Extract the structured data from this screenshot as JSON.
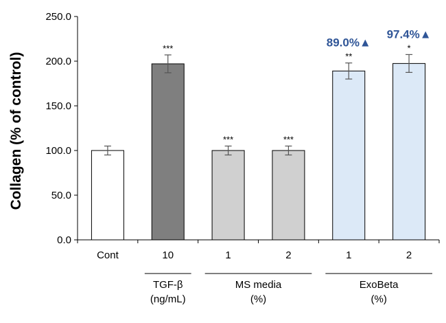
{
  "chart_data": {
    "type": "bar",
    "title": "",
    "xlabel": "",
    "ylabel": "Collagen (% of control)",
    "ylim": [
      0,
      250
    ],
    "yticks": [
      "0.0",
      "50.0",
      "100.0",
      "150.0",
      "200.0",
      "250.0"
    ],
    "categories": [
      "Cont",
      "10",
      "1",
      "2",
      "1",
      "2"
    ],
    "values": [
      100,
      197,
      100,
      100,
      189,
      197.4
    ],
    "errors": [
      5,
      10,
      5,
      5,
      9,
      10
    ],
    "significance": [
      "",
      "***",
      "***",
      "***",
      "**",
      "*"
    ],
    "bar_colors": [
      "#ffffff",
      "#7f7f7f",
      "#d0d0d0",
      "#d0d0d0",
      "#dce9f7",
      "#dce9f7"
    ],
    "groups": [
      {
        "name": "TGF-β",
        "unit": "(ng/mL)",
        "categories": [
          1
        ]
      },
      {
        "name": "MS media",
        "unit": "(%)",
        "categories": [
          2,
          3
        ]
      },
      {
        "name": "ExoBeta",
        "unit": "(%)",
        "categories": [
          4,
          5
        ]
      }
    ],
    "annotations": [
      {
        "category": 4,
        "text": "89.0%▲"
      },
      {
        "category": 5,
        "text": "97.4%▲"
      }
    ],
    "annotation_color": "#2f5597"
  }
}
